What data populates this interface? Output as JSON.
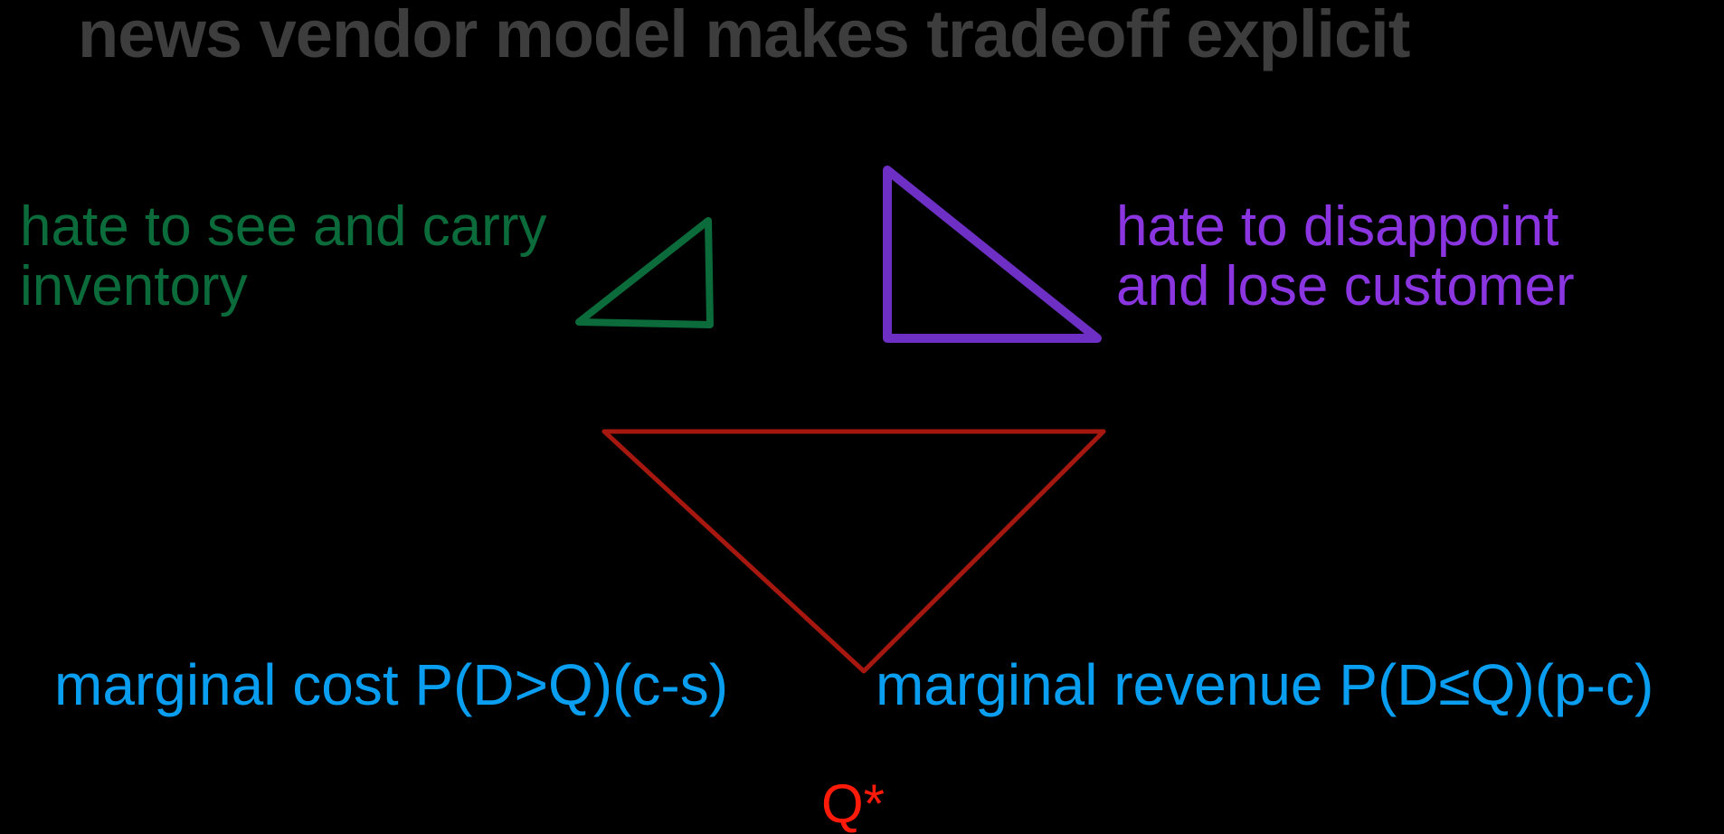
{
  "title": "news vendor model makes tradeoff explicit",
  "left_label": {
    "line1": "hate to see and carry",
    "line2": "inventory"
  },
  "right_label": {
    "line1": "hate to disappoint",
    "line2": "and lose customer"
  },
  "marginal_cost": "marginal cost P(D>Q)(c-s)",
  "marginal_revenue": {
    "prefix": "marginal revenue P(D",
    "symbol": "≤",
    "suffix": "Q)(p-c)"
  },
  "optimum_label": "Q*",
  "colors": {
    "background": "#000000",
    "title": "#3d3d3d",
    "green": "#0b6b3a",
    "purple": "#8a35e0",
    "purple_stroke": "#6e2fc4",
    "blue": "#0a9ef0",
    "red_stroke": "#a6180f",
    "red_text": "#ff1a0a"
  },
  "shapes": {
    "left_triangle": "green right triangle",
    "right_triangle": "purple right triangle",
    "center_triangle": "red inverted triangle"
  }
}
